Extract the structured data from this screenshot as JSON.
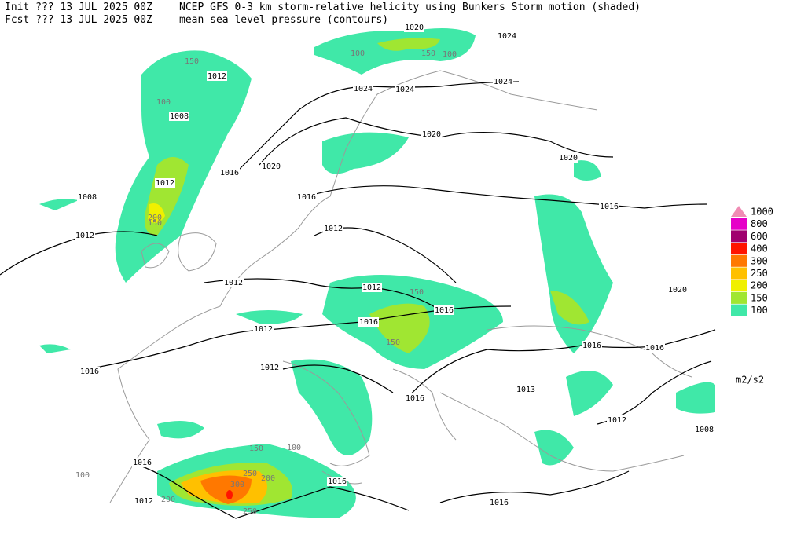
{
  "header": {
    "init": "Init  ??? 13 JUL 2025 00Z",
    "fcst": "Fcst ??? 13 JUL 2025 00Z",
    "title": "NCEP GFS 0-3 km storm-relative helicity using Bunkers Storm motion (shaded)",
    "subtitle": "mean sea level pressure (contours)"
  },
  "legend": {
    "units": "m2/s2",
    "levels": [
      {
        "label": "1000",
        "color": "#f08cb4"
      },
      {
        "label": "800",
        "color": "#e600c8"
      },
      {
        "label": "600",
        "color": "#a0006e"
      },
      {
        "label": "400",
        "color": "#ff1400"
      },
      {
        "label": "300",
        "color": "#ff7800"
      },
      {
        "label": "250",
        "color": "#ffc000"
      },
      {
        "label": "200",
        "color": "#f0f000"
      },
      {
        "label": "150",
        "color": "#a0e632"
      },
      {
        "label": "100",
        "color": "#40e8a8"
      }
    ]
  },
  "contour_labels": [
    "1020",
    "1024",
    "1024",
    "1024",
    "1024",
    "1012",
    "1008",
    "1020",
    "1020",
    "1020",
    "1016",
    "1012",
    "1008",
    "1016",
    "1016",
    "1012",
    "1012",
    "1012",
    "1012",
    "1016",
    "1016",
    "1020",
    "1012",
    "1016",
    "1016",
    "1016",
    "1012",
    "1016",
    "1013",
    "1012",
    "1008",
    "1016",
    "1012",
    "1016",
    "1016"
  ],
  "shading_labels": [
    "100",
    "150",
    "100",
    "150",
    "100",
    "200",
    "150",
    "300",
    "250",
    "250",
    "200",
    "200",
    "150",
    "100",
    "150",
    "150",
    "100"
  ]
}
